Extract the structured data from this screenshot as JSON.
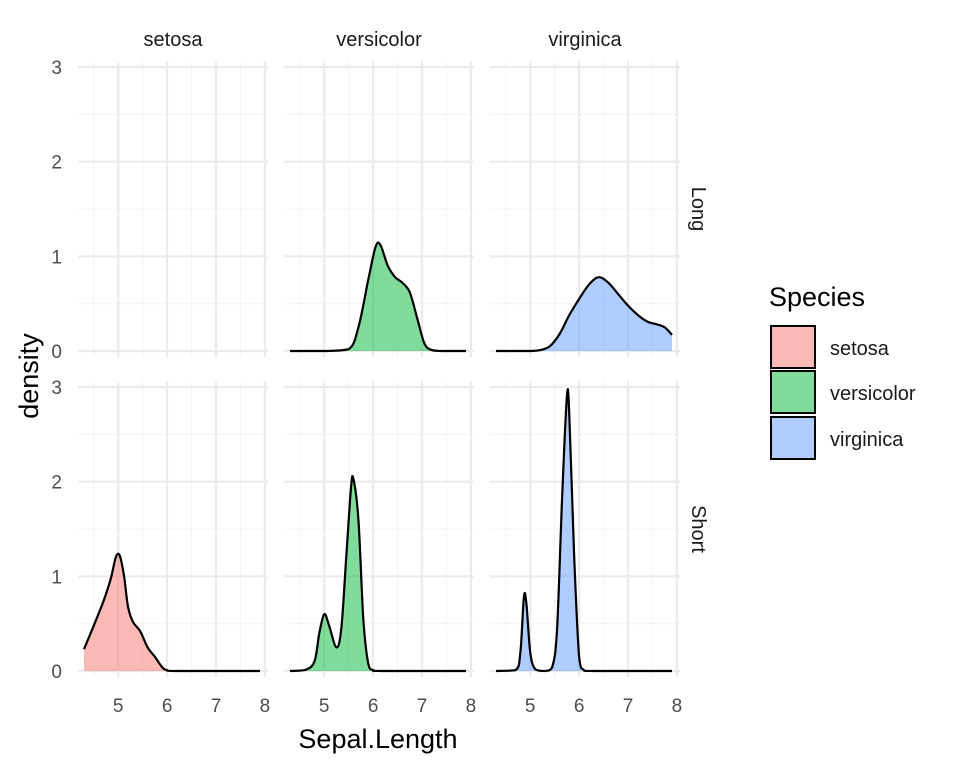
{
  "chart_data": {
    "type": "area",
    "xlabel": "Sepal.Length",
    "ylabel": "density",
    "xlim": [
      4.3,
      7.9
    ],
    "ylim": [
      0,
      3
    ],
    "x_ticks": [
      5,
      6,
      7,
      8
    ],
    "y_ticks": [
      0,
      1,
      2,
      3
    ],
    "grid": true,
    "col_facets": [
      "setosa",
      "versicolor",
      "virginica"
    ],
    "row_facets": [
      "Long",
      "Short"
    ],
    "legend": {
      "title": "Species",
      "position": "right",
      "entries": [
        {
          "label": "setosa",
          "color": "#F8766D"
        },
        {
          "label": "versicolor",
          "color": "#00BA38"
        },
        {
          "label": "virginica",
          "color": "#619CFF"
        }
      ]
    },
    "panels": [
      {
        "col": "setosa",
        "row": "Long",
        "points": []
      },
      {
        "col": "versicolor",
        "row": "Long",
        "points": [
          [
            4.3,
            0
          ],
          [
            5.0,
            0
          ],
          [
            5.5,
            0.02
          ],
          [
            5.7,
            0.25
          ],
          [
            5.9,
            0.75
          ],
          [
            6.05,
            1.1
          ],
          [
            6.15,
            1.12
          ],
          [
            6.3,
            0.9
          ],
          [
            6.45,
            0.78
          ],
          [
            6.6,
            0.72
          ],
          [
            6.75,
            0.62
          ],
          [
            6.9,
            0.35
          ],
          [
            7.05,
            0.08
          ],
          [
            7.2,
            0.01
          ],
          [
            7.4,
            0
          ],
          [
            7.9,
            0
          ]
        ]
      },
      {
        "col": "virginica",
        "row": "Long",
        "points": [
          [
            4.3,
            0
          ],
          [
            5.0,
            0
          ],
          [
            5.2,
            0.01
          ],
          [
            5.4,
            0.05
          ],
          [
            5.6,
            0.18
          ],
          [
            5.8,
            0.38
          ],
          [
            6.0,
            0.55
          ],
          [
            6.2,
            0.7
          ],
          [
            6.4,
            0.78
          ],
          [
            6.6,
            0.72
          ],
          [
            6.8,
            0.6
          ],
          [
            7.0,
            0.48
          ],
          [
            7.2,
            0.38
          ],
          [
            7.4,
            0.31
          ],
          [
            7.6,
            0.28
          ],
          [
            7.75,
            0.25
          ],
          [
            7.9,
            0.17
          ]
        ]
      },
      {
        "col": "setosa",
        "row": "Short",
        "points": [
          [
            4.3,
            0.23
          ],
          [
            4.5,
            0.48
          ],
          [
            4.7,
            0.74
          ],
          [
            4.85,
            0.98
          ],
          [
            4.95,
            1.2
          ],
          [
            5.03,
            1.22
          ],
          [
            5.12,
            1.0
          ],
          [
            5.2,
            0.68
          ],
          [
            5.3,
            0.52
          ],
          [
            5.45,
            0.42
          ],
          [
            5.6,
            0.25
          ],
          [
            5.75,
            0.15
          ],
          [
            5.9,
            0.04
          ],
          [
            6.0,
            0.01
          ],
          [
            6.2,
            0
          ],
          [
            7.9,
            0
          ]
        ]
      },
      {
        "col": "versicolor",
        "row": "Short",
        "points": [
          [
            4.3,
            0
          ],
          [
            4.6,
            0.01
          ],
          [
            4.8,
            0.1
          ],
          [
            4.9,
            0.4
          ],
          [
            5.0,
            0.6
          ],
          [
            5.1,
            0.48
          ],
          [
            5.25,
            0.25
          ],
          [
            5.35,
            0.45
          ],
          [
            5.45,
            1.2
          ],
          [
            5.55,
            1.95
          ],
          [
            5.6,
            2.02
          ],
          [
            5.7,
            1.6
          ],
          [
            5.8,
            0.55
          ],
          [
            5.9,
            0.08
          ],
          [
            6.0,
            0.01
          ],
          [
            6.2,
            0
          ],
          [
            7.9,
            0
          ]
        ]
      },
      {
        "col": "virginica",
        "row": "Short",
        "points": [
          [
            4.3,
            0
          ],
          [
            4.7,
            0.01
          ],
          [
            4.8,
            0.2
          ],
          [
            4.87,
            0.78
          ],
          [
            4.92,
            0.72
          ],
          [
            5.0,
            0.2
          ],
          [
            5.1,
            0.02
          ],
          [
            5.3,
            0
          ],
          [
            5.45,
            0.04
          ],
          [
            5.55,
            0.45
          ],
          [
            5.65,
            1.8
          ],
          [
            5.75,
            2.9
          ],
          [
            5.8,
            2.7
          ],
          [
            5.9,
            1.2
          ],
          [
            6.0,
            0.15
          ],
          [
            6.1,
            0.01
          ],
          [
            6.3,
            0
          ],
          [
            7.9,
            0
          ]
        ]
      }
    ]
  }
}
